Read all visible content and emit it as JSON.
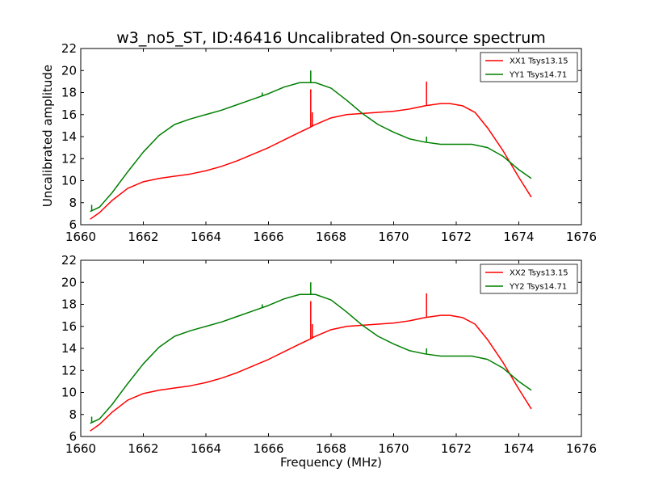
{
  "figure": {
    "title": "w3_no5_ST, ID:46416 Uncalibrated On-source spectrum",
    "ylabel": "Uncalibrated amplitude",
    "xlabel": "Frequency (MHz)"
  },
  "chart_data": [
    {
      "type": "line",
      "xlim": [
        1660,
        1676
      ],
      "ylim": [
        6,
        22
      ],
      "xticks": [
        "1660",
        "1662",
        "1664",
        "1666",
        "1668",
        "1670",
        "1672",
        "1674",
        "1676"
      ],
      "yticks": [
        "6",
        "8",
        "10",
        "12",
        "14",
        "16",
        "18",
        "20",
        "22"
      ],
      "legend_location": "upper right",
      "series": [
        {
          "name": "XX1 Tsys13.15",
          "color": "#ff0000",
          "x": [
            1660.3,
            1660.6,
            1661.0,
            1661.5,
            1662.0,
            1662.5,
            1663.0,
            1663.5,
            1664.0,
            1664.5,
            1665.0,
            1665.5,
            1666.0,
            1666.5,
            1667.0,
            1667.3,
            1667.5,
            1668.0,
            1668.5,
            1669.0,
            1669.5,
            1670.0,
            1670.5,
            1671.0,
            1671.5,
            1671.8,
            1672.2,
            1672.6,
            1673.0,
            1673.5,
            1674.0,
            1674.4
          ],
          "y": [
            6.5,
            7.1,
            8.2,
            9.3,
            9.9,
            10.2,
            10.4,
            10.6,
            10.9,
            11.3,
            11.8,
            12.4,
            13.0,
            13.7,
            14.4,
            14.8,
            15.1,
            15.7,
            16.0,
            16.1,
            16.2,
            16.3,
            16.5,
            16.8,
            17.0,
            17.0,
            16.8,
            16.2,
            14.8,
            12.7,
            10.3,
            8.5
          ],
          "spikes": [
            {
              "x": 1667.35,
              "y": 18.3
            },
            {
              "x": 1667.4,
              "y": 16.2
            },
            {
              "x": 1671.05,
              "y": 19.0
            }
          ]
        },
        {
          "name": "YY1 Tsys14.71",
          "color": "#007f00",
          "x": [
            1660.3,
            1660.6,
            1661.0,
            1661.5,
            1662.0,
            1662.5,
            1663.0,
            1663.5,
            1664.0,
            1664.5,
            1665.0,
            1665.5,
            1666.0,
            1666.5,
            1667.0,
            1667.5,
            1668.0,
            1668.5,
            1669.0,
            1669.5,
            1670.0,
            1670.5,
            1671.0,
            1671.5,
            1672.0,
            1672.5,
            1673.0,
            1673.5,
            1674.0,
            1674.4
          ],
          "y": [
            7.2,
            7.6,
            8.9,
            10.8,
            12.6,
            14.1,
            15.1,
            15.6,
            16.0,
            16.4,
            16.9,
            17.4,
            17.9,
            18.5,
            18.9,
            18.9,
            18.4,
            17.3,
            16.1,
            15.1,
            14.4,
            13.8,
            13.5,
            13.3,
            13.3,
            13.3,
            13.0,
            12.2,
            11.0,
            10.2
          ],
          "spikes": [
            {
              "x": 1660.35,
              "y": 7.8
            },
            {
              "x": 1665.8,
              "y": 18.0
            },
            {
              "x": 1667.35,
              "y": 20.0
            },
            {
              "x": 1671.05,
              "y": 14.0
            }
          ]
        }
      ]
    },
    {
      "type": "line",
      "xlim": [
        1660,
        1676
      ],
      "ylim": [
        6,
        22
      ],
      "xticks": [
        "1660",
        "1662",
        "1664",
        "1666",
        "1668",
        "1670",
        "1672",
        "1674",
        "1676"
      ],
      "yticks": [
        "6",
        "8",
        "10",
        "12",
        "14",
        "16",
        "18",
        "20",
        "22"
      ],
      "legend_location": "upper right",
      "series": [
        {
          "name": "XX2 Tsys13.15",
          "color": "#ff0000",
          "x": [
            1660.3,
            1660.6,
            1661.0,
            1661.5,
            1662.0,
            1662.5,
            1663.0,
            1663.5,
            1664.0,
            1664.5,
            1665.0,
            1665.5,
            1666.0,
            1666.5,
            1667.0,
            1667.3,
            1667.5,
            1668.0,
            1668.5,
            1669.0,
            1669.5,
            1670.0,
            1670.5,
            1671.0,
            1671.5,
            1671.8,
            1672.2,
            1672.6,
            1673.0,
            1673.5,
            1674.0,
            1674.4
          ],
          "y": [
            6.5,
            7.1,
            8.2,
            9.3,
            9.9,
            10.2,
            10.4,
            10.6,
            10.9,
            11.3,
            11.8,
            12.4,
            13.0,
            13.7,
            14.4,
            14.8,
            15.1,
            15.7,
            16.0,
            16.1,
            16.2,
            16.3,
            16.5,
            16.8,
            17.0,
            17.0,
            16.8,
            16.2,
            14.8,
            12.7,
            10.3,
            8.5
          ],
          "spikes": [
            {
              "x": 1667.35,
              "y": 18.3
            },
            {
              "x": 1667.4,
              "y": 16.2
            },
            {
              "x": 1671.05,
              "y": 19.0
            }
          ]
        },
        {
          "name": "YY2 Tsys14.71",
          "color": "#007f00",
          "x": [
            1660.3,
            1660.6,
            1661.0,
            1661.5,
            1662.0,
            1662.5,
            1663.0,
            1663.5,
            1664.0,
            1664.5,
            1665.0,
            1665.5,
            1666.0,
            1666.5,
            1667.0,
            1667.5,
            1668.0,
            1668.5,
            1669.0,
            1669.5,
            1670.0,
            1670.5,
            1671.0,
            1671.5,
            1672.0,
            1672.5,
            1673.0,
            1673.5,
            1674.0,
            1674.4
          ],
          "y": [
            7.2,
            7.6,
            8.9,
            10.8,
            12.6,
            14.1,
            15.1,
            15.6,
            16.0,
            16.4,
            16.9,
            17.4,
            17.9,
            18.5,
            18.9,
            18.9,
            18.4,
            17.3,
            16.1,
            15.1,
            14.4,
            13.8,
            13.5,
            13.3,
            13.3,
            13.3,
            13.0,
            12.2,
            11.0,
            10.2
          ],
          "spikes": [
            {
              "x": 1660.35,
              "y": 7.8
            },
            {
              "x": 1665.8,
              "y": 18.0
            },
            {
              "x": 1667.35,
              "y": 20.0
            },
            {
              "x": 1671.05,
              "y": 14.0
            }
          ]
        }
      ]
    }
  ]
}
